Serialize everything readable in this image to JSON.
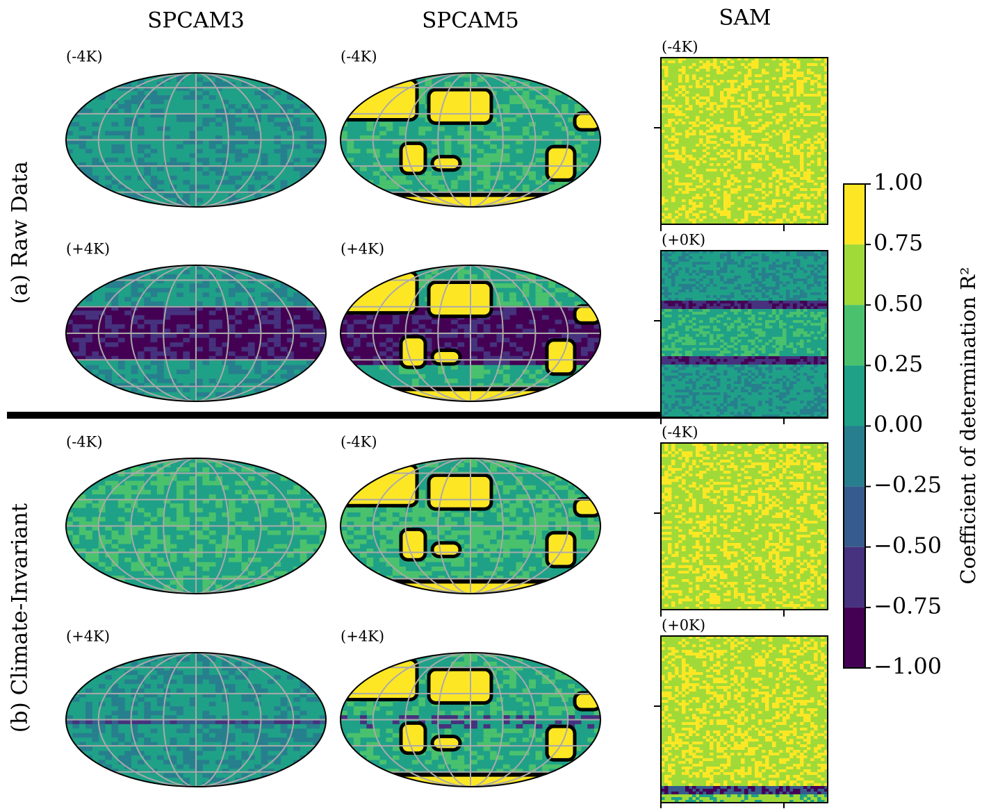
{
  "column_titles": [
    "SPCAM3",
    "SPCAM5",
    "SAM"
  ],
  "row_labels": [
    "(a) Raw Data",
    "(b) Climate-Invariant"
  ],
  "panel_labels": [
    [
      "(-4K)",
      "(-4K)",
      "(-4K)"
    ],
    [
      "(+4K)",
      "(+4K)",
      "(+0K)"
    ],
    [
      "(-4K)",
      "(-4K)",
      "(-4K)"
    ],
    [
      "(+4K)",
      "(+4K)",
      "(+0K)"
    ]
  ],
  "colorbar": {
    "label": "Coefficient of determination R²",
    "lim": [
      -1,
      1
    ],
    "ticks": [
      {
        "value": 1,
        "label": "1.00"
      },
      {
        "value": 0.75,
        "label": "0.75"
      },
      {
        "value": 0.5,
        "label": "0.50"
      },
      {
        "value": 0.25,
        "label": "0.25"
      },
      {
        "value": 0,
        "label": "0.00"
      },
      {
        "value": -0.25,
        "label": "−0.25"
      },
      {
        "value": -0.5,
        "label": "−0.50"
      },
      {
        "value": -0.75,
        "label": "−0.75"
      },
      {
        "value": -1,
        "label": "−1.00"
      }
    ],
    "colors": [
      "#440154",
      "#46327e",
      "#365c8d",
      "#277f8e",
      "#1fa187",
      "#4ac16d",
      "#a0da39",
      "#fde725"
    ]
  }
}
